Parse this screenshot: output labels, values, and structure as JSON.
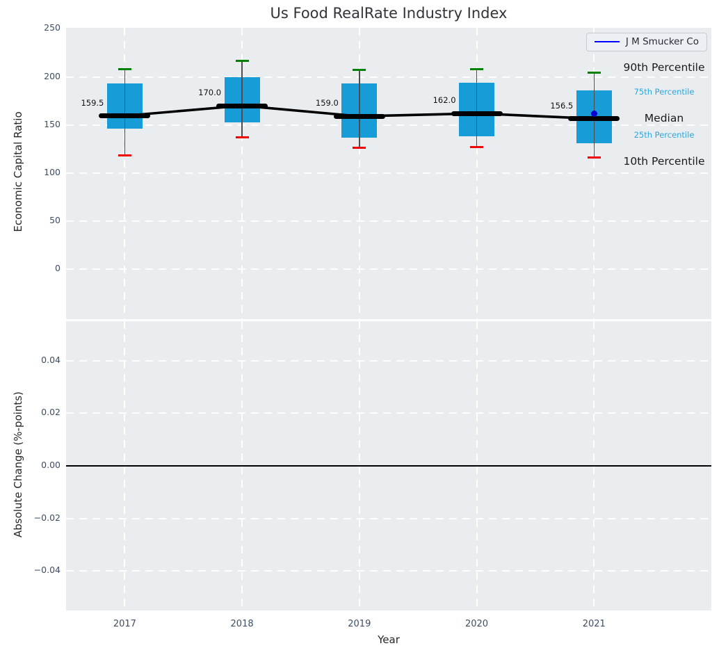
{
  "colors": {
    "axes_background": "#e9edf0",
    "grid": "#ffffff",
    "box_fill": "#189cd8",
    "p90_cap": "#008000",
    "p10_cap": "#f10000",
    "whisker": "#4d4d4d",
    "median": "#000000",
    "company_marker": "#0000cf",
    "legend_line": "#0000ff",
    "percentile_text_minor": "#2ba6dc",
    "tick_text": "#3d4d63",
    "zero_line": "#000000"
  },
  "chart_data": [
    {
      "type": "box",
      "title": "Us Food RealRate Industry Index",
      "xlabel": "Year",
      "ylabel": "Economic Capital Ratio",
      "x": [
        2017,
        2018,
        2019,
        2020,
        2021
      ],
      "xlim": [
        2016.5,
        2022.0
      ],
      "ylim": [
        -52,
        251
      ],
      "grid": "white dashed, horizontal and vertical",
      "yticks": [
        {
          "value": 250,
          "label": "250"
        },
        {
          "value": 200,
          "label": "200"
        },
        {
          "value": 150,
          "label": "150"
        },
        {
          "value": 100,
          "label": "100"
        },
        {
          "value": 50,
          "label": "50"
        },
        {
          "value": 0,
          "label": "0"
        }
      ],
      "boxes": [
        {
          "year": 2017,
          "p10": 118,
          "p25": 146,
          "median": 159.5,
          "p75": 193,
          "p90": 208,
          "median_label": "159.5"
        },
        {
          "year": 2018,
          "p10": 137,
          "p25": 152.5,
          "median": 170.0,
          "p75": 199.5,
          "p90": 216.5,
          "median_label": "170.0"
        },
        {
          "year": 2019,
          "p10": 126,
          "p25": 137,
          "median": 159.0,
          "p75": 193,
          "p90": 207,
          "median_label": "159.0"
        },
        {
          "year": 2020,
          "p10": 127,
          "p25": 138.5,
          "median": 162.0,
          "p75": 194,
          "p90": 208,
          "median_label": "162.0"
        },
        {
          "year": 2021,
          "p10": 116,
          "p25": 131,
          "median": 156.5,
          "p75": 186,
          "p90": 204,
          "median_label": "156.5"
        }
      ],
      "median_line_values": [
        159.5,
        170.0,
        159.0,
        162.0,
        156.5
      ],
      "series": [
        {
          "name": "J M Smucker Co",
          "points": [
            {
              "x": 2021,
              "y": 162
            }
          ]
        }
      ],
      "legend_position": "upper right",
      "right_labels": [
        {
          "text": "90th Percentile",
          "value": 210,
          "style": "major"
        },
        {
          "text": "75th Percentile",
          "value": 183,
          "style": "minor"
        },
        {
          "text": "Median",
          "value": 157,
          "style": "major"
        },
        {
          "text": "25th Percentile",
          "value": 138,
          "style": "minor"
        },
        {
          "text": "10th Percentile",
          "value": 112,
          "style": "major"
        }
      ]
    },
    {
      "type": "line",
      "xlabel": "Year",
      "ylabel": "Absolute Change (%-points)",
      "x": [
        2017,
        2018,
        2019,
        2020,
        2021
      ],
      "xlim": [
        2016.5,
        2022.0
      ],
      "ylim": [
        -0.055,
        0.055
      ],
      "grid": "white dashed, horizontal and vertical",
      "yticks": [
        {
          "value": 0.04,
          "label": "0.04"
        },
        {
          "value": 0.02,
          "label": "0.02"
        },
        {
          "value": 0.0,
          "label": "0.00"
        },
        {
          "value": -0.02,
          "label": "−0.02"
        },
        {
          "value": -0.04,
          "label": "−0.04"
        }
      ],
      "zero_line": 0.0,
      "values": []
    }
  ]
}
